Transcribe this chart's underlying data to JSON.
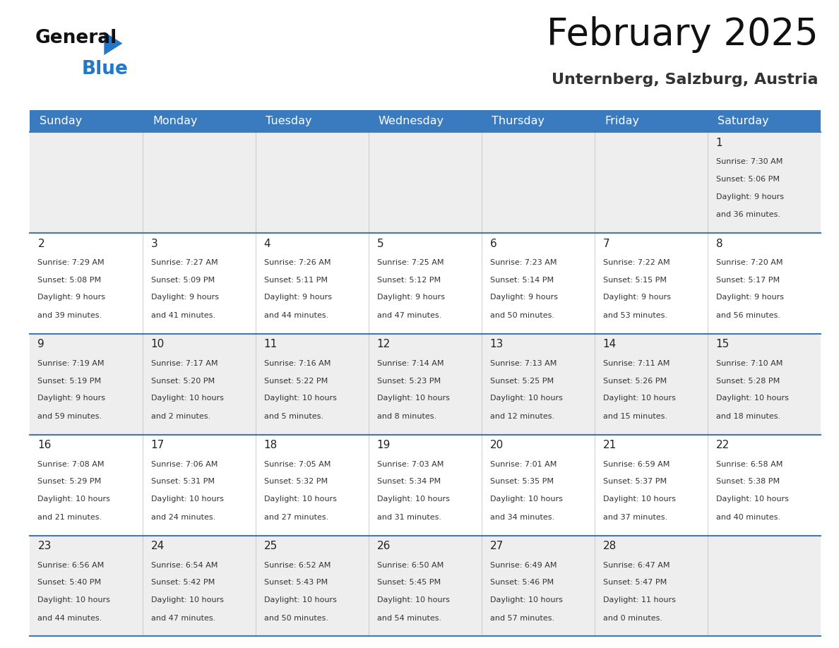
{
  "title": "February 2025",
  "subtitle": "Unternberg, Salzburg, Austria",
  "header_color": "#3a7abf",
  "header_text_color": "#ffffff",
  "row_bg_light": "#eeeeee",
  "row_bg_white": "#ffffff",
  "title_color": "#111111",
  "subtitle_color": "#333333",
  "day_number_color": "#222222",
  "info_color": "#333333",
  "line_color": "#3a7abf",
  "logo_black": "#111111",
  "logo_blue": "#2277cc",
  "triangle_color": "#2277cc",
  "days_of_week": [
    "Sunday",
    "Monday",
    "Tuesday",
    "Wednesday",
    "Thursday",
    "Friday",
    "Saturday"
  ],
  "calendar": [
    [
      null,
      null,
      null,
      null,
      null,
      null,
      {
        "day": 1,
        "sunrise": "7:30 AM",
        "sunset": "5:06 PM",
        "daylight": "9 hours and 36 minutes."
      }
    ],
    [
      {
        "day": 2,
        "sunrise": "7:29 AM",
        "sunset": "5:08 PM",
        "daylight": "9 hours and 39 minutes."
      },
      {
        "day": 3,
        "sunrise": "7:27 AM",
        "sunset": "5:09 PM",
        "daylight": "9 hours and 41 minutes."
      },
      {
        "day": 4,
        "sunrise": "7:26 AM",
        "sunset": "5:11 PM",
        "daylight": "9 hours and 44 minutes."
      },
      {
        "day": 5,
        "sunrise": "7:25 AM",
        "sunset": "5:12 PM",
        "daylight": "9 hours and 47 minutes."
      },
      {
        "day": 6,
        "sunrise": "7:23 AM",
        "sunset": "5:14 PM",
        "daylight": "9 hours and 50 minutes."
      },
      {
        "day": 7,
        "sunrise": "7:22 AM",
        "sunset": "5:15 PM",
        "daylight": "9 hours and 53 minutes."
      },
      {
        "day": 8,
        "sunrise": "7:20 AM",
        "sunset": "5:17 PM",
        "daylight": "9 hours and 56 minutes."
      }
    ],
    [
      {
        "day": 9,
        "sunrise": "7:19 AM",
        "sunset": "5:19 PM",
        "daylight": "9 hours and 59 minutes."
      },
      {
        "day": 10,
        "sunrise": "7:17 AM",
        "sunset": "5:20 PM",
        "daylight": "10 hours and 2 minutes."
      },
      {
        "day": 11,
        "sunrise": "7:16 AM",
        "sunset": "5:22 PM",
        "daylight": "10 hours and 5 minutes."
      },
      {
        "day": 12,
        "sunrise": "7:14 AM",
        "sunset": "5:23 PM",
        "daylight": "10 hours and 8 minutes."
      },
      {
        "day": 13,
        "sunrise": "7:13 AM",
        "sunset": "5:25 PM",
        "daylight": "10 hours and 12 minutes."
      },
      {
        "day": 14,
        "sunrise": "7:11 AM",
        "sunset": "5:26 PM",
        "daylight": "10 hours and 15 minutes."
      },
      {
        "day": 15,
        "sunrise": "7:10 AM",
        "sunset": "5:28 PM",
        "daylight": "10 hours and 18 minutes."
      }
    ],
    [
      {
        "day": 16,
        "sunrise": "7:08 AM",
        "sunset": "5:29 PM",
        "daylight": "10 hours and 21 minutes."
      },
      {
        "day": 17,
        "sunrise": "7:06 AM",
        "sunset": "5:31 PM",
        "daylight": "10 hours and 24 minutes."
      },
      {
        "day": 18,
        "sunrise": "7:05 AM",
        "sunset": "5:32 PM",
        "daylight": "10 hours and 27 minutes."
      },
      {
        "day": 19,
        "sunrise": "7:03 AM",
        "sunset": "5:34 PM",
        "daylight": "10 hours and 31 minutes."
      },
      {
        "day": 20,
        "sunrise": "7:01 AM",
        "sunset": "5:35 PM",
        "daylight": "10 hours and 34 minutes."
      },
      {
        "day": 21,
        "sunrise": "6:59 AM",
        "sunset": "5:37 PM",
        "daylight": "10 hours and 37 minutes."
      },
      {
        "day": 22,
        "sunrise": "6:58 AM",
        "sunset": "5:38 PM",
        "daylight": "10 hours and 40 minutes."
      }
    ],
    [
      {
        "day": 23,
        "sunrise": "6:56 AM",
        "sunset": "5:40 PM",
        "daylight": "10 hours and 44 minutes."
      },
      {
        "day": 24,
        "sunrise": "6:54 AM",
        "sunset": "5:42 PM",
        "daylight": "10 hours and 47 minutes."
      },
      {
        "day": 25,
        "sunrise": "6:52 AM",
        "sunset": "5:43 PM",
        "daylight": "10 hours and 50 minutes."
      },
      {
        "day": 26,
        "sunrise": "6:50 AM",
        "sunset": "5:45 PM",
        "daylight": "10 hours and 54 minutes."
      },
      {
        "day": 27,
        "sunrise": "6:49 AM",
        "sunset": "5:46 PM",
        "daylight": "10 hours and 57 minutes."
      },
      {
        "day": 28,
        "sunrise": "6:47 AM",
        "sunset": "5:47 PM",
        "daylight": "11 hours and 0 minutes."
      },
      null
    ]
  ]
}
